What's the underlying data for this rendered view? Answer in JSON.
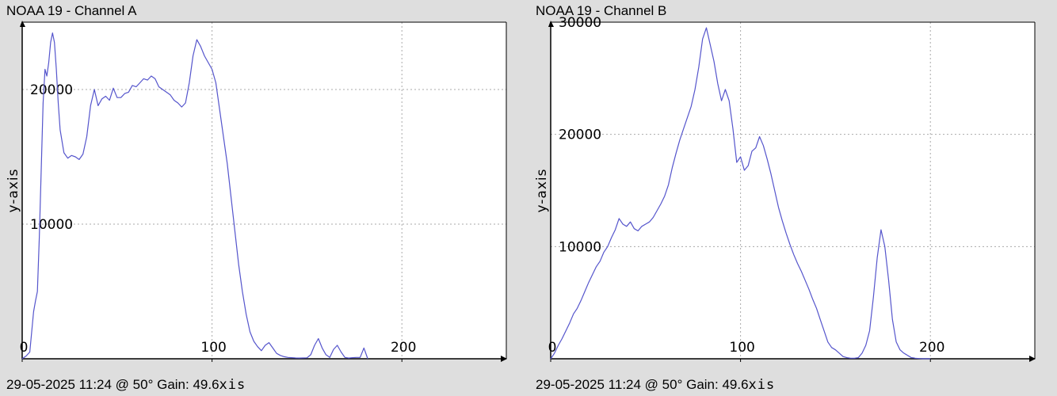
{
  "chart_data": [
    {
      "type": "line",
      "title": "NOAA 19 - Channel A",
      "footer": "29-05-2025 11:24 @ 50° Gain: 49.6",
      "xlabel": "xis",
      "ylabel": "y-axis",
      "xlim": [
        0,
        255
      ],
      "ylim": [
        0,
        25000
      ],
      "xticks": [
        0,
        100,
        200
      ],
      "yticks": [
        10000,
        20000
      ],
      "grid": true,
      "line_color": "#5555cc",
      "series": [
        {
          "x": [
            0,
            2,
            4,
            6,
            7,
            8,
            9,
            10,
            11,
            12,
            13,
            14,
            15,
            16,
            17,
            18,
            19,
            20,
            22,
            24,
            26,
            28,
            30,
            32,
            34,
            36,
            38,
            40,
            42,
            44,
            46,
            48,
            50,
            52,
            54,
            56,
            58,
            60,
            62,
            64,
            66,
            68,
            70,
            72,
            74,
            76,
            78,
            80,
            82,
            84,
            86,
            88,
            90,
            92,
            94,
            96,
            98,
            100,
            102,
            104,
            106,
            108,
            110,
            112,
            114,
            116,
            118,
            120,
            122,
            124,
            126,
            128,
            130,
            132,
            134,
            136,
            138,
            140,
            142,
            144,
            146,
            148,
            150,
            152,
            154,
            156,
            158,
            160,
            162,
            164,
            166,
            168,
            170,
            172,
            174,
            176,
            178,
            180,
            182
          ],
          "y": [
            0,
            200,
            500,
            3500,
            4300,
            5000,
            9000,
            14000,
            19000,
            21500,
            21000,
            22000,
            23500,
            24200,
            23500,
            21500,
            19000,
            17000,
            15300,
            14900,
            15100,
            15000,
            14800,
            15200,
            16500,
            18800,
            20000,
            18800,
            19300,
            19500,
            19200,
            20100,
            19400,
            19400,
            19700,
            19800,
            20300,
            20200,
            20500,
            20800,
            20700,
            21000,
            20800,
            20200,
            20000,
            19800,
            19600,
            19200,
            19000,
            18700,
            19000,
            20500,
            22500,
            23700,
            23200,
            22500,
            22000,
            21500,
            20500,
            18500,
            16500,
            14500,
            12000,
            9500,
            7000,
            5000,
            3300,
            2000,
            1300,
            900,
            600,
            1000,
            1200,
            800,
            400,
            250,
            150,
            100,
            80,
            60,
            50,
            60,
            70,
            300,
            1000,
            1500,
            800,
            300,
            100,
            700,
            1000,
            500,
            100,
            50,
            80,
            100,
            100,
            800,
            0
          ]
        }
      ]
    },
    {
      "type": "line",
      "title": "NOAA 19 - Channel B",
      "footer": "29-05-2025 11:24 @ 50° Gain: 49.6",
      "xlabel": "xis",
      "ylabel": "y-axis",
      "xlim": [
        0,
        255
      ],
      "ylim": [
        0,
        30000
      ],
      "xticks": [
        0,
        100,
        200
      ],
      "yticks": [
        10000,
        20000,
        30000
      ],
      "grid": true,
      "line_color": "#5555cc",
      "series": [
        {
          "x": [
            0,
            2,
            4,
            6,
            8,
            10,
            12,
            14,
            16,
            18,
            20,
            22,
            24,
            26,
            28,
            30,
            32,
            34,
            36,
            38,
            40,
            42,
            44,
            46,
            48,
            50,
            52,
            54,
            56,
            58,
            60,
            62,
            64,
            66,
            68,
            70,
            72,
            74,
            76,
            78,
            80,
            82,
            84,
            86,
            88,
            90,
            91,
            92,
            94,
            96,
            98,
            100,
            102,
            104,
            106,
            108,
            110,
            112,
            114,
            116,
            118,
            120,
            122,
            124,
            126,
            128,
            130,
            132,
            134,
            136,
            138,
            140,
            142,
            144,
            146,
            148,
            150,
            152,
            154,
            156,
            158,
            160,
            162,
            164,
            166,
            168,
            170,
            172,
            174,
            176,
            178,
            180,
            182,
            184,
            186,
            187,
            188,
            189,
            190,
            191,
            192,
            194,
            196,
            198,
            200
          ],
          "y": [
            0,
            500,
            1200,
            1800,
            2500,
            3200,
            4000,
            4500,
            5200,
            6000,
            6800,
            7500,
            8200,
            8700,
            9500,
            10000,
            10800,
            11500,
            12500,
            12000,
            11800,
            12200,
            11600,
            11400,
            11800,
            12000,
            12200,
            12600,
            13200,
            13800,
            14500,
            15500,
            17000,
            18300,
            19500,
            20500,
            21500,
            22500,
            24000,
            26000,
            28500,
            29500,
            28000,
            26500,
            24500,
            23000,
            23500,
            24000,
            23000,
            20500,
            17500,
            18000,
            16800,
            17200,
            18500,
            18800,
            19800,
            19000,
            17800,
            16500,
            15000,
            13500,
            12300,
            11200,
            10200,
            9300,
            8500,
            7800,
            7000,
            6200,
            5300,
            4500,
            3500,
            2500,
            1500,
            1000,
            800,
            500,
            200,
            100,
            50,
            50,
            100,
            500,
            1200,
            2500,
            5500,
            9000,
            11500,
            10000,
            7000,
            3500,
            1500,
            800,
            500,
            400,
            300,
            200,
            100,
            80,
            50,
            20,
            10,
            5,
            0
          ]
        }
      ]
    }
  ]
}
